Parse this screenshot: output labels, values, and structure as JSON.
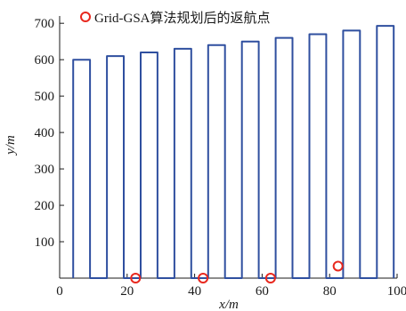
{
  "chart_data": {
    "type": "line",
    "title": "",
    "xlabel": "x/m",
    "ylabel": "y/m",
    "xlim": [
      0,
      100
    ],
    "ylim": [
      0,
      720
    ],
    "x_ticks": [
      0,
      20,
      40,
      60,
      80,
      100
    ],
    "y_ticks": [
      100,
      200,
      300,
      400,
      500,
      600,
      700
    ],
    "grid": false,
    "legend_position": "top",
    "series": [
      {
        "type": "line",
        "color": "#2f4f9f",
        "x": [
          4,
          4,
          9,
          9,
          14,
          14,
          19,
          19,
          24,
          24,
          29,
          29,
          34,
          34,
          39,
          39,
          44,
          44,
          49,
          49,
          54,
          54,
          59,
          59,
          64,
          64,
          69,
          69,
          74,
          74,
          79,
          79,
          84,
          84,
          89,
          89,
          94,
          94,
          99,
          99
        ],
        "y": [
          0,
          600,
          600,
          0,
          0,
          610,
          610,
          0,
          0,
          620,
          620,
          0,
          0,
          630,
          630,
          0,
          0,
          640,
          640,
          0,
          0,
          650,
          650,
          0,
          0,
          660,
          660,
          0,
          0,
          670,
          670,
          0,
          0,
          680,
          680,
          0,
          0,
          693,
          693,
          0
        ]
      },
      {
        "name": "Grid-GSA算法规划后的返航点",
        "type": "scatter",
        "color": "#e8281e",
        "marker": "circle-open",
        "x": [
          22.5,
          42.5,
          62.5,
          82.5
        ],
        "y": [
          0,
          0,
          0,
          33
        ]
      }
    ]
  }
}
